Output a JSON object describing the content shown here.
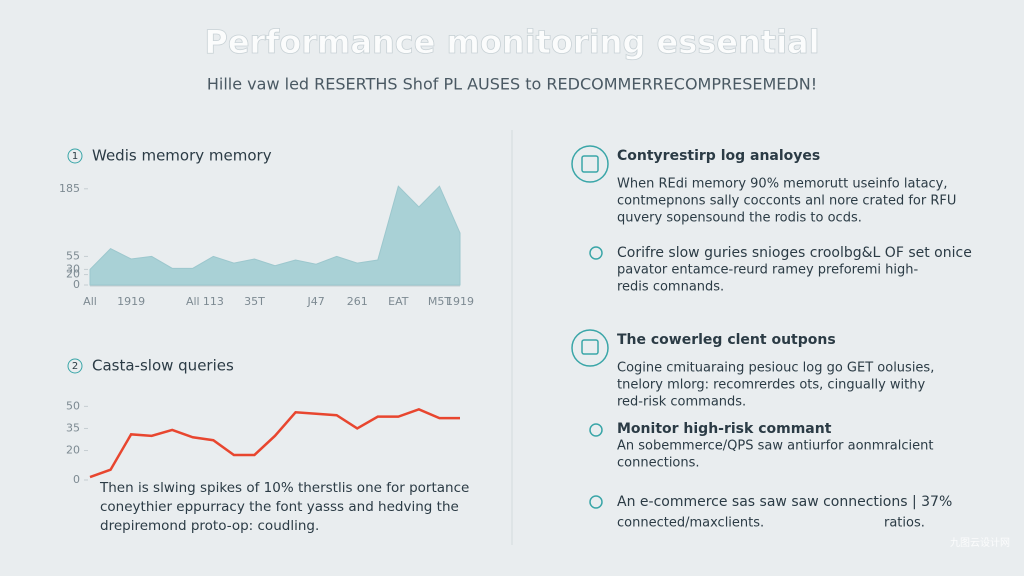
{
  "title": "Performance monitoring essential",
  "subtitle": "Hille vaw led RESERTHS Shof PL AUSES to REDCOMMERRECOMPRESEMEDN!",
  "chart_data": [
    {
      "type": "area",
      "badge": "1",
      "title": "Wedis memory memory",
      "color": "#a9d1d6",
      "categories": [
        "All",
        null,
        "1919",
        null,
        null,
        "All",
        "113",
        null,
        "35T",
        null,
        null,
        "J47",
        null,
        "261",
        null,
        "EAT",
        null,
        "M5T",
        "1919"
      ],
      "values": [
        30,
        70,
        50,
        55,
        32,
        32,
        55,
        42,
        50,
        37,
        48,
        40,
        55,
        42,
        48,
        190,
        150,
        190,
        100
      ],
      "ylim": [
        0,
        200
      ],
      "yticks": [
        0,
        20,
        30,
        55,
        185
      ]
    },
    {
      "type": "line",
      "badge": "2",
      "title": "Casta-slow queries",
      "color": "#e8462f",
      "values": [
        2,
        7,
        31,
        30,
        34,
        29,
        27,
        17,
        17,
        30,
        46,
        45,
        44,
        35,
        43,
        43,
        48,
        42,
        42
      ],
      "ylim": [
        0,
        55
      ],
      "yticks": [
        0,
        20,
        35,
        50
      ],
      "annotation": [
        "Then is slwing spikes of 10% therstlis one for portance",
        "conеythier eppurracy the font yasss and hedving the",
        "drepiremond proto-op: coudling."
      ]
    }
  ],
  "sections": [
    {
      "title": "Contyrestirp log analoyes",
      "lines": [
        "When REdi memory 90% memorutt useinfo latacy,",
        "contmepnons sally cocconts anl nore crated for RFU",
        "quvery sopensound the rodis to ocds."
      ]
    },
    {
      "title": "Corifre slow guries snioges croolbg&L OF set onice",
      "lines": [
        "pavator entamce-reurd ramey preforemi high-",
        "redis comnands."
      ]
    },
    {
      "title": "The cowerleg clent outpons",
      "lines": [
        "Cogine cmituaraing pesiouc log go GET oolusies,",
        "tnelory mlorg: recomrerdes ots, cingually withy",
        "red-risk commands."
      ]
    },
    {
      "title": "Monitor high-risk commant",
      "lines": [
        "An sobemmerce/QPS saw antiurfor aonmralcient",
        "connections."
      ]
    },
    {
      "title": "An e-commerce sas saw saw connections | 37%",
      "lines": [
        "connected/maxclients.",
        "ratios."
      ]
    }
  ],
  "watermark": "九图云设计网"
}
